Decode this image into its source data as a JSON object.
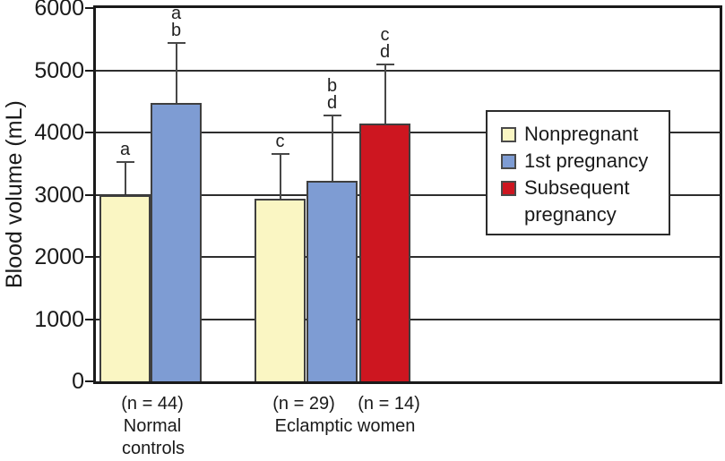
{
  "figure": {
    "y_axis_title": "Blood volume (mL)"
  },
  "chart_data": {
    "type": "bar",
    "title": "",
    "xlabel": "",
    "ylabel": "Blood volume (mL)",
    "ylim": [
      0,
      6000
    ],
    "yticks": [
      0,
      1000,
      2000,
      3000,
      4000,
      5000,
      6000
    ],
    "grid": "horizontal",
    "legend_position": "inside-right",
    "error_bars": "upper-only",
    "bars": [
      {
        "group": "Normal controls",
        "series": "Nonpregnant",
        "value": 3000,
        "error_top": 3530,
        "sig_letters": [
          "a"
        ],
        "color": "#faf6c3"
      },
      {
        "group": "Normal controls",
        "series": "1st pregnancy",
        "value": 4470,
        "error_top": 5440,
        "sig_letters": [
          "a",
          "b"
        ],
        "color": "#7e9cd3"
      },
      {
        "group": "Eclamptic women",
        "series": "Nonpregnant",
        "value": 2940,
        "error_top": 3660,
        "sig_letters": [
          "c"
        ],
        "color": "#faf6c3"
      },
      {
        "group": "Eclamptic women",
        "series": "1st pregnancy",
        "value": 3230,
        "error_top": 4280,
        "sig_letters": [
          "b",
          "d"
        ],
        "color": "#7e9cd3"
      },
      {
        "group": "Eclamptic women",
        "series": "Subsequent pregnancy",
        "value": 4140,
        "error_top": 5100,
        "sig_letters": [
          "c",
          "d"
        ],
        "color": "#cd1620"
      }
    ]
  },
  "legend": {
    "items": [
      {
        "label": "Nonpregnant",
        "display": "Nonpregnant",
        "color": "#faf6c3"
      },
      {
        "label": "1st pregnancy",
        "display": "1st pregnancy",
        "color": "#7e9cd3"
      },
      {
        "label": "Subsequent pregnancy",
        "display": "Subsequent\npregnancy",
        "color": "#cd1620"
      }
    ]
  },
  "x_axis": {
    "group1_n": "(n = 44)",
    "group1_line1": "Normal",
    "group1_line2": "controls",
    "group2_n1": "(n = 29)",
    "group2_n2": "(n = 14)",
    "group2_label": "Eclamptic women"
  },
  "colors": {
    "nonpregnant": "#faf6c3",
    "first_pregnancy": "#7e9cd3",
    "subsequent_pregnancy": "#cd1620",
    "bar_border": "#3f3f3f",
    "error_bar": "#474747",
    "gridline": "#2e2e2e",
    "axis": "#1a1a1a",
    "background": "#ffffff"
  }
}
